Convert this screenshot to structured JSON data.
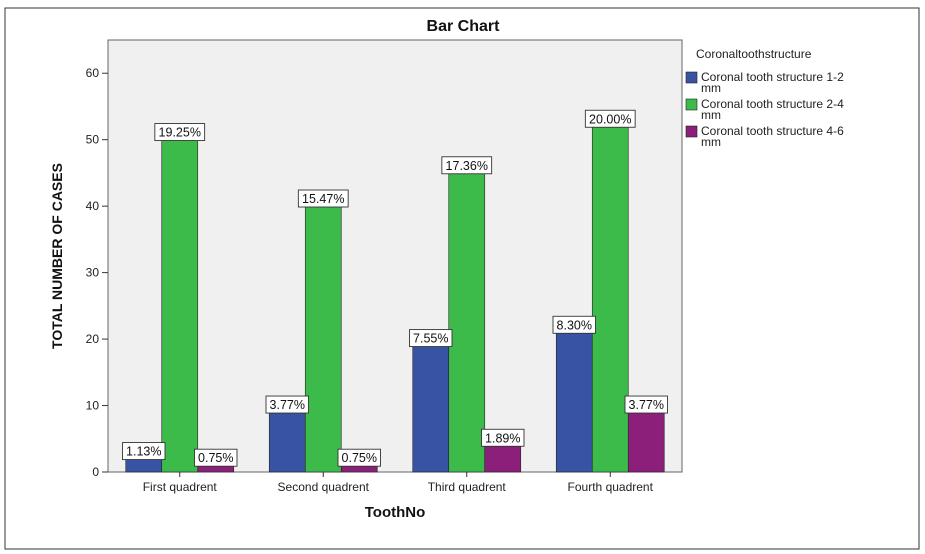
{
  "chart_data": {
    "type": "bar",
    "title": "Bar Chart",
    "xlabel": "ToothNo",
    "ylabel": "TOTAL NUMBER OF CASES",
    "ylim": [
      0,
      65
    ],
    "yticks": [
      0,
      10,
      20,
      30,
      40,
      50,
      60
    ],
    "categories": [
      "First quadrent",
      "Second quadrent",
      "Third quadrent",
      "Fourth quadrent"
    ],
    "legend_title": "Coronaltoothstructure",
    "legend_position": "right",
    "grid": false,
    "series": [
      {
        "name": "Coronal tooth structure 1-2 mm",
        "legend_lines": [
          "Coronal tooth structure 1-2",
          "mm"
        ],
        "color": "#3953a4",
        "values": [
          3,
          10,
          20,
          22
        ],
        "labels": [
          "1.13%",
          "3.77%",
          "7.55%",
          "8.30%"
        ]
      },
      {
        "name": "Coronal tooth structure 2-4 mm",
        "legend_lines": [
          "Coronal tooth structure 2-4",
          "mm"
        ],
        "color": "#3dbb4a",
        "values": [
          51,
          41,
          46,
          53
        ],
        "labels": [
          "19.25%",
          "15.47%",
          "17.36%",
          "20.00%"
        ]
      },
      {
        "name": "Coronal tooth structure 4-6 mm",
        "legend_lines": [
          "Coronal tooth structure 4-6",
          "mm"
        ],
        "color": "#8c1f7a",
        "values": [
          2,
          2,
          5,
          10
        ],
        "labels": [
          "0.75%",
          "0.75%",
          "1.89%",
          "3.77%"
        ]
      }
    ]
  }
}
